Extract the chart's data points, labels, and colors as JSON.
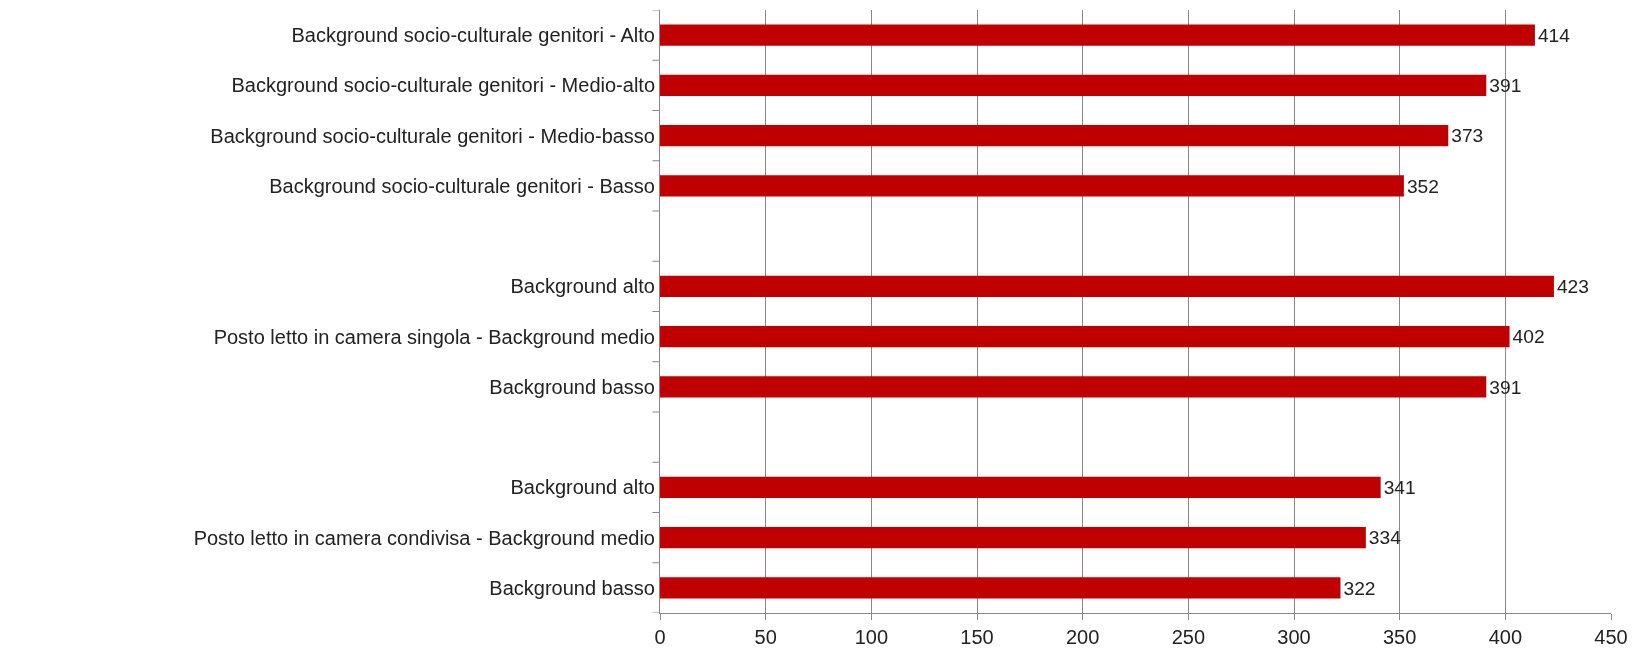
{
  "chart_data": {
    "type": "bar",
    "orientation": "horizontal",
    "categories": [
      "Background socio-culturale genitori - Alto",
      "Background socio-culturale genitori - Medio-alto",
      "Background socio-culturale genitori - Medio-basso",
      "Background socio-culturale genitori - Basso",
      null,
      "Background alto",
      "Posto letto in camera singola - Background medio",
      "Background basso",
      null,
      "Background alto",
      "Posto letto in camera condivisa - Background medio",
      "Background basso"
    ],
    "values": [
      414,
      391,
      373,
      352,
      null,
      423,
      402,
      391,
      null,
      341,
      334,
      322
    ],
    "color": "#c00000",
    "data_labels": true,
    "grid": "x",
    "xlim": [
      0,
      450
    ],
    "xticks": [
      0,
      50,
      100,
      150,
      200,
      250,
      300,
      350,
      400,
      450
    ]
  }
}
